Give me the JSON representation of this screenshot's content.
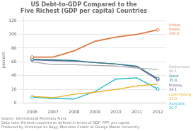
{
  "chart_data": {
    "type": "line",
    "title": "US Debt-to-GDP Compared to the\nFive Richest (GDP per capita) Countries",
    "ylabel": "percent",
    "x": [
      2006,
      2007,
      2008,
      2009,
      2010,
      2011,
      2012
    ],
    "xlim": [
      2005.6,
      2012.4
    ],
    "xticks": [
      2006,
      2007,
      2008,
      2009,
      2010,
      2011,
      2012
    ],
    "ylim": [
      0,
      125
    ],
    "yticks": [
      0,
      20,
      40,
      60,
      80,
      100,
      120
    ],
    "grid": "y",
    "series": [
      {
        "name": "United States",
        "color": "#e07840",
        "marker": "circle",
        "values": [
          67,
          67,
          76,
          90,
          96,
          100,
          106.5
        ]
      },
      {
        "name": "Switzerland",
        "color": "#aaaaaa",
        "values": [
          60,
          56,
          56,
          55,
          54,
          51,
          49.1
        ]
      },
      {
        "name": "Qatar",
        "color": "#2a8080",
        "marker": "circle",
        "values": [
          64,
          63,
          62,
          59,
          57,
          54,
          35.8
        ]
      },
      {
        "name": "Norway",
        "color": "#7060a8",
        "marker": "circle",
        "values": [
          63,
          62,
          61,
          59,
          57,
          53,
          34.1
        ]
      },
      {
        "name": "Luxembourg",
        "color": "#e8b020",
        "values": [
          10,
          8,
          13,
          16,
          20,
          25,
          27.9
        ]
      },
      {
        "name": "Australia",
        "color": "#18b8c8",
        "marker": "circle",
        "values": [
          9,
          7,
          6,
          17,
          35,
          37,
          20.7
        ]
      }
    ],
    "annotations": [
      {
        "text": "United\nStates\n106.5",
        "y": 106.5,
        "color": "#e07840"
      },
      {
        "text": "Switzerland\n49.1",
        "y": 49.1,
        "color": "#aaaaaa"
      },
      {
        "text": "Qatar\n35.8",
        "y": 35.8,
        "color": "#2a8080"
      },
      {
        "text": "Norway\n34.1",
        "y": 34.1,
        "color": "#7060a8"
      },
      {
        "text": "Luxembourg\n27.9",
        "y": 27.9,
        "color": "#e8b020"
      },
      {
        "text": "Australia\n20.7",
        "y": 20.7,
        "color": "#18b8c8"
      }
    ],
    "footnote": "Source: International Monetary Fund.\nData note: Richest countries as defined in terms of GDP, PPP, per capita.\nProduced by Veronique de Rugy, Mercatus Center at George Mason University."
  }
}
